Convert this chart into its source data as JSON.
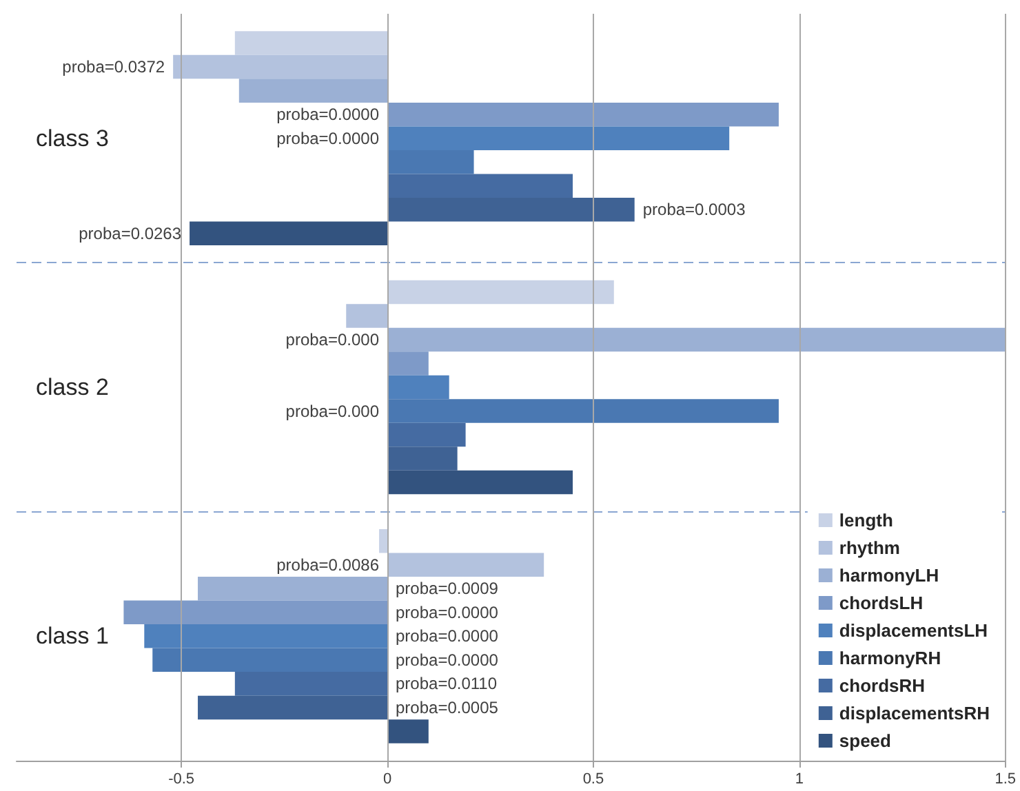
{
  "chart_data": {
    "type": "bar",
    "orientation": "horizontal",
    "categories": [
      "class 3",
      "class 2",
      "class 1"
    ],
    "series": [
      {
        "name": "length",
        "color": "#c8d2e6",
        "values": [
          -0.37,
          0.55,
          -0.02
        ]
      },
      {
        "name": "rhythm",
        "color": "#b3c2de",
        "values": [
          -0.52,
          -0.1,
          0.38
        ]
      },
      {
        "name": "harmonyLH",
        "color": "#9bb0d4",
        "values": [
          -0.36,
          1.5,
          -0.46
        ]
      },
      {
        "name": "chordsLH",
        "color": "#7e9ac8",
        "values": [
          0.95,
          0.1,
          -0.64
        ]
      },
      {
        "name": "displacementsLH",
        "color": "#4f81bd",
        "values": [
          0.83,
          0.15,
          -0.59
        ]
      },
      {
        "name": "harmonyRH",
        "color": "#4a78b2",
        "values": [
          0.21,
          0.95,
          -0.57
        ]
      },
      {
        "name": "chordsRH",
        "color": "#456ba2",
        "values": [
          0.45,
          0.19,
          -0.37
        ]
      },
      {
        "name": "displacementsRH",
        "color": "#3f6294",
        "values": [
          0.6,
          0.17,
          -0.46
        ]
      },
      {
        "name": "speed",
        "color": "#33537f",
        "values": [
          -0.48,
          0.45,
          0.1
        ]
      }
    ],
    "annotations": [
      "proba=0.0372",
      "proba=0.0000",
      "proba=0.0000",
      "proba=0.0003",
      "proba=0.0263",
      "proba=0.000",
      "proba=0.000",
      "proba=0.0086",
      "proba=0.0009",
      "proba=0.0000",
      "proba=0.0000",
      "proba=0.0000",
      "proba=0.0110",
      "proba=0.0005"
    ],
    "xlim": [
      -0.9,
      1.5
    ],
    "xticks": [
      -0.5,
      0,
      0.5,
      1,
      1.5
    ],
    "grid": true,
    "legend": "bottom right"
  }
}
